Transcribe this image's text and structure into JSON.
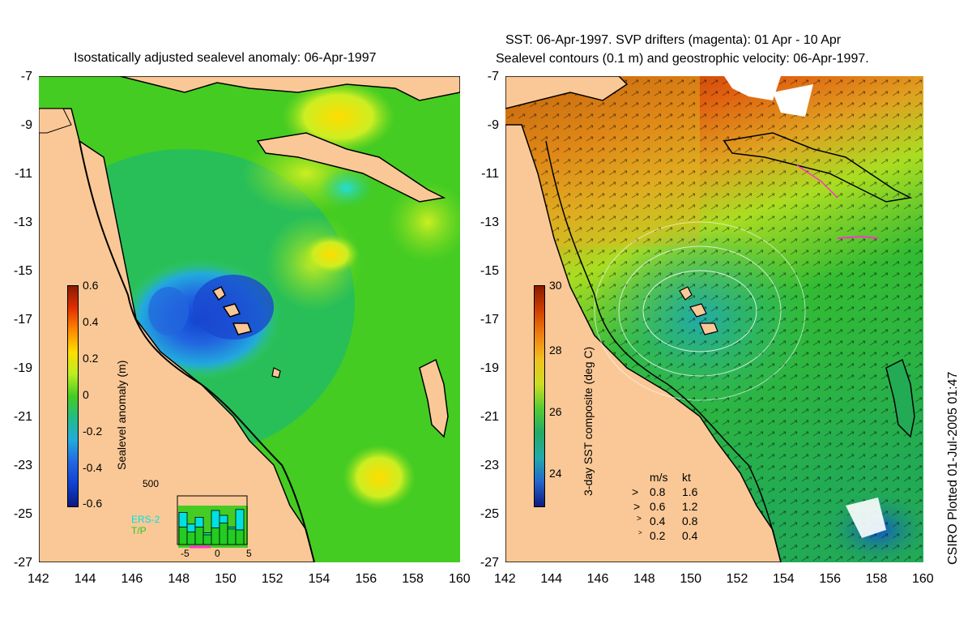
{
  "left_panel": {
    "title": "Isostatically adjusted sealevel anomaly: 06-Apr-1997",
    "colorbar": {
      "label": "Sealevel anomaly (m)",
      "ticks": [
        "0.6",
        "0.4",
        "0.2",
        "0",
        "-0.2",
        "-0.4",
        "-0.6"
      ]
    },
    "histogram": {
      "ymax_label": "500",
      "series": [
        "ERS-2",
        "T/P"
      ],
      "series_colors": [
        "#00e0e0",
        "#22cc22"
      ],
      "xticks": [
        "-5",
        "0",
        "5"
      ],
      "ers2_counts": [
        330,
        210,
        280,
        120,
        350,
        300,
        180,
        360
      ],
      "tp_counts": [
        180,
        130,
        180,
        100,
        170,
        220,
        160,
        150
      ]
    }
  },
  "right_panel": {
    "title_line1": "SST: 06-Apr-1997. SVP drifters (magenta): 01 Apr - 10 Apr",
    "title_line2": "Sealevel contours (0.1 m) and geostrophic velocity: 06-Apr-1997.",
    "colorbar": {
      "label": "3-day SST composite (deg C)",
      "ticks": [
        "30",
        "28",
        "26",
        "24"
      ]
    },
    "velocity_legend": {
      "header_ms": "m/s",
      "header_kt": "kt",
      "rows": [
        {
          "ms": "0.8",
          "kt": "1.6"
        },
        {
          "ms": "0.6",
          "kt": "1.2"
        },
        {
          "ms": "0.4",
          "kt": "0.8"
        },
        {
          "ms": "0.2",
          "kt": "0.4"
        }
      ]
    }
  },
  "axes": {
    "lon_ticks": [
      "142",
      "144",
      "146",
      "148",
      "150",
      "152",
      "154",
      "156",
      "158",
      "160"
    ],
    "lat_ticks": [
      "-7",
      "-9",
      "-11",
      "-13",
      "-15",
      "-17",
      "-19",
      "-21",
      "-23",
      "-25",
      "-27"
    ]
  },
  "credit": "CSIRO Plotted 01-Jul-2005 01:47",
  "colors": {
    "land": "#fac896",
    "sea_base_sla": "#44cc22",
    "sea_base_sst": "#33bb33"
  }
}
